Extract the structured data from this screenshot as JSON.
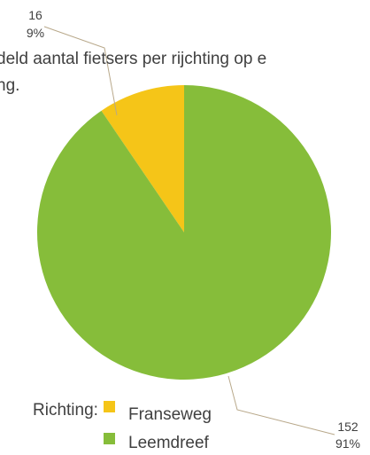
{
  "chart_data": {
    "type": "pie",
    "title": "deld aantal fietsers per rijchting op e",
    "title_line2": "ng.",
    "slices": [
      {
        "name": "Franseweg",
        "value": 16,
        "percent": "9%",
        "color": "#f5c518"
      },
      {
        "name": "Leemdreef",
        "value": 152,
        "percent": "91%",
        "color": "#86bd3a"
      }
    ],
    "legend_title": "Richting:",
    "legend_position": "bottom"
  }
}
